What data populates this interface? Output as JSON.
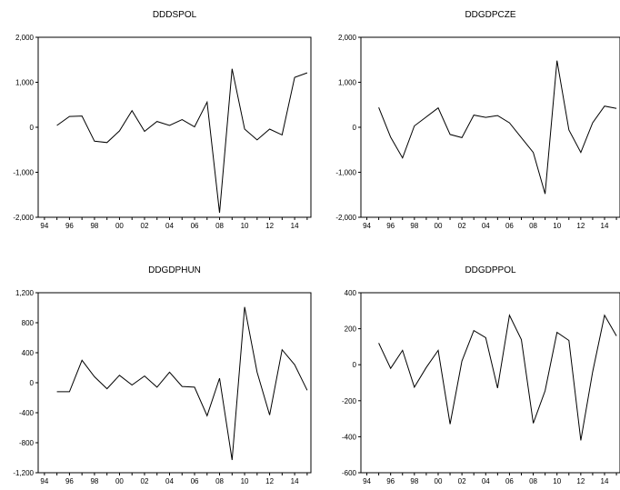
{
  "chart_data": [
    {
      "type": "line",
      "title": "DDDSPOL",
      "x": [
        1995,
        1996,
        1997,
        1998,
        1999,
        2000,
        2001,
        2002,
        2003,
        2004,
        2005,
        2006,
        2007,
        2008,
        2009,
        2010,
        2011,
        2012,
        2013,
        2014,
        2015
      ],
      "values": [
        40,
        240,
        250,
        -310,
        -340,
        -80,
        370,
        -90,
        130,
        40,
        170,
        10,
        560,
        -1900,
        1300,
        -40,
        -280,
        -40,
        -170,
        1110,
        1210
      ],
      "ylim": [
        -2000,
        2000
      ],
      "yticks": [
        2000,
        1000,
        0,
        -1000,
        -2000
      ],
      "ytick_labels": [
        "2,000",
        "1,000",
        "0",
        "-1,000",
        "-2,000"
      ],
      "xtick_labels": [
        "94",
        "96",
        "98",
        "00",
        "02",
        "04",
        "06",
        "08",
        "10",
        "12",
        "14"
      ],
      "xlim": [
        1993.5,
        2015.3
      ],
      "line_color": "#000000",
      "grid": false
    },
    {
      "type": "line",
      "title": "DDGDPCZE",
      "x": [
        1995,
        1996,
        1997,
        1998,
        1999,
        2000,
        2001,
        2002,
        2003,
        2004,
        2005,
        2006,
        2007,
        2008,
        2009,
        2010,
        2011,
        2012,
        2013,
        2014,
        2015
      ],
      "values": [
        440,
        -220,
        -680,
        30,
        230,
        430,
        -160,
        -230,
        270,
        220,
        260,
        100,
        -230,
        -560,
        -1480,
        1480,
        -60,
        -560,
        100,
        470,
        420
      ],
      "ylim": [
        -2000,
        2000
      ],
      "yticks": [
        2000,
        1000,
        0,
        -1000,
        -2000
      ],
      "ytick_labels": [
        "2,000",
        "1,000",
        "0",
        "-1,000",
        "-2,000"
      ],
      "xtick_labels": [
        "94",
        "96",
        "98",
        "00",
        "02",
        "04",
        "06",
        "08",
        "10",
        "12",
        "14"
      ],
      "xlim": [
        1993.5,
        2015.3
      ],
      "line_color": "#000000",
      "grid": false
    },
    {
      "type": "line",
      "title": "DDGDPHUN",
      "x": [
        1995,
        1996,
        1997,
        1998,
        1999,
        2000,
        2001,
        2002,
        2003,
        2004,
        2005,
        2006,
        2007,
        2008,
        2009,
        2010,
        2011,
        2012,
        2013,
        2014,
        2015
      ],
      "values": [
        -120,
        -120,
        300,
        80,
        -80,
        100,
        -30,
        90,
        -60,
        140,
        -50,
        -60,
        -440,
        60,
        -1030,
        1010,
        140,
        -430,
        440,
        240,
        -100
      ],
      "ylim": [
        -1200,
        1200
      ],
      "yticks": [
        1200,
        800,
        400,
        0,
        -400,
        -800,
        -1200
      ],
      "ytick_labels": [
        "1,200",
        "800",
        "400",
        "0",
        "-400",
        "-800",
        "-1,200"
      ],
      "xtick_labels": [
        "94",
        "96",
        "98",
        "00",
        "02",
        "04",
        "06",
        "08",
        "10",
        "12",
        "14"
      ],
      "xlim": [
        1993.5,
        2015.3
      ],
      "line_color": "#000000",
      "grid": false
    },
    {
      "type": "line",
      "title": "DDGDPPOL",
      "x": [
        1995,
        1996,
        1997,
        1998,
        1999,
        2000,
        2001,
        2002,
        2003,
        2004,
        2005,
        2006,
        2007,
        2008,
        2009,
        2010,
        2011,
        2012,
        2013,
        2014,
        2015
      ],
      "values": [
        120,
        -20,
        80,
        -125,
        -15,
        80,
        -330,
        20,
        190,
        150,
        -130,
        275,
        140,
        -325,
        -145,
        180,
        135,
        -420,
        -40,
        275,
        160
      ],
      "ylim": [
        -600,
        400
      ],
      "yticks": [
        400,
        200,
        0,
        -200,
        -400,
        -600
      ],
      "ytick_labels": [
        "400",
        "200",
        "0",
        "-200",
        "-400",
        "-600"
      ],
      "xtick_labels": [
        "94",
        "96",
        "98",
        "00",
        "02",
        "04",
        "06",
        "08",
        "10",
        "12",
        "14"
      ],
      "xlim": [
        1993.5,
        2015.3
      ],
      "line_color": "#000000",
      "grid": false
    }
  ]
}
